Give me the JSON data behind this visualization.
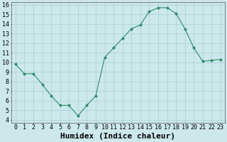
{
  "x": [
    0,
    1,
    2,
    3,
    4,
    5,
    6,
    7,
    8,
    9,
    10,
    11,
    12,
    13,
    14,
    15,
    16,
    17,
    18,
    19,
    20,
    21,
    22,
    23
  ],
  "y": [
    9.8,
    8.8,
    8.8,
    7.7,
    6.5,
    5.5,
    5.5,
    4.4,
    5.5,
    6.5,
    10.5,
    11.5,
    12.5,
    13.5,
    13.9,
    15.3,
    15.7,
    15.7,
    15.1,
    13.5,
    11.5,
    10.1,
    10.2,
    10.3
  ],
  "line_color": "#2e8b6b",
  "marker": "D",
  "marker_size": 2,
  "bg_color": "#cce8ea",
  "grid_color": "#aacfd2",
  "xlabel": "Humidex (Indice chaleur)",
  "ylim": [
    4,
    16
  ],
  "xlim": [
    -0.5,
    23.5
  ],
  "yticks": [
    4,
    5,
    6,
    7,
    8,
    9,
    10,
    11,
    12,
    13,
    14,
    15,
    16
  ],
  "xticks": [
    0,
    1,
    2,
    3,
    4,
    5,
    6,
    7,
    8,
    9,
    10,
    11,
    12,
    13,
    14,
    15,
    16,
    17,
    18,
    19,
    20,
    21,
    22,
    23
  ],
  "tick_label_size": 6,
  "xlabel_size": 8,
  "xlabel_fontfamily": "monospace"
}
